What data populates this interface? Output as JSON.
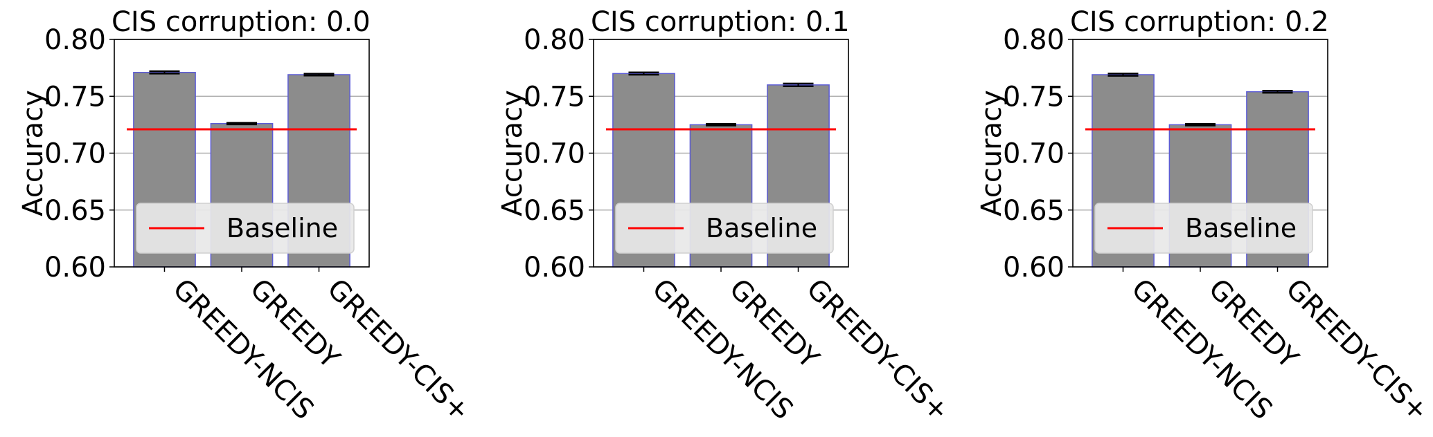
{
  "colors": {
    "bar_fill": "#8c8c8c",
    "bar_edge": "#5b5bd6",
    "baseline": "#ff0000",
    "grid": "#b0b0b0",
    "error_bar": "#000000",
    "legend_bg": "#e8e8e8"
  },
  "chart_data": [
    {
      "type": "bar",
      "title": "CIS corruption: 0.0",
      "ylabel": "Accuracy",
      "xlabel": "",
      "categories": [
        "GREEDY-NCIS",
        "GREEDY",
        "GREEDY-CIS+"
      ],
      "values": [
        0.771,
        0.726,
        0.769
      ],
      "errors": [
        0.001,
        0.0007,
        0.0008
      ],
      "baseline": 0.721,
      "ylim": [
        0.6,
        0.8
      ],
      "yticks": [
        "0.60",
        "0.65",
        "0.70",
        "0.75",
        "0.80"
      ],
      "grid": "y",
      "legend": {
        "entries": [
          "Baseline"
        ],
        "placement": "lower-center"
      }
    },
    {
      "type": "bar",
      "title": "CIS corruption: 0.1",
      "ylabel": "Accuracy",
      "xlabel": "",
      "categories": [
        "GREEDY-NCIS",
        "GREEDY",
        "GREEDY-CIS+"
      ],
      "values": [
        0.77,
        0.725,
        0.76
      ],
      "errors": [
        0.001,
        0.0007,
        0.0012
      ],
      "baseline": 0.721,
      "ylim": [
        0.6,
        0.8
      ],
      "yticks": [
        "0.60",
        "0.65",
        "0.70",
        "0.75",
        "0.80"
      ],
      "grid": "y",
      "legend": {
        "entries": [
          "Baseline"
        ],
        "placement": "lower-center"
      }
    },
    {
      "type": "bar",
      "title": "CIS corruption: 0.2",
      "ylabel": "Accuracy",
      "xlabel": "",
      "categories": [
        "GREEDY-NCIS",
        "GREEDY",
        "GREEDY-CIS+"
      ],
      "values": [
        0.769,
        0.725,
        0.754
      ],
      "errors": [
        0.001,
        0.0007,
        0.0009
      ],
      "baseline": 0.721,
      "ylim": [
        0.6,
        0.8
      ],
      "yticks": [
        "0.60",
        "0.65",
        "0.70",
        "0.75",
        "0.80"
      ],
      "grid": "y",
      "legend": {
        "entries": [
          "Baseline"
        ],
        "placement": "lower-center"
      }
    }
  ]
}
